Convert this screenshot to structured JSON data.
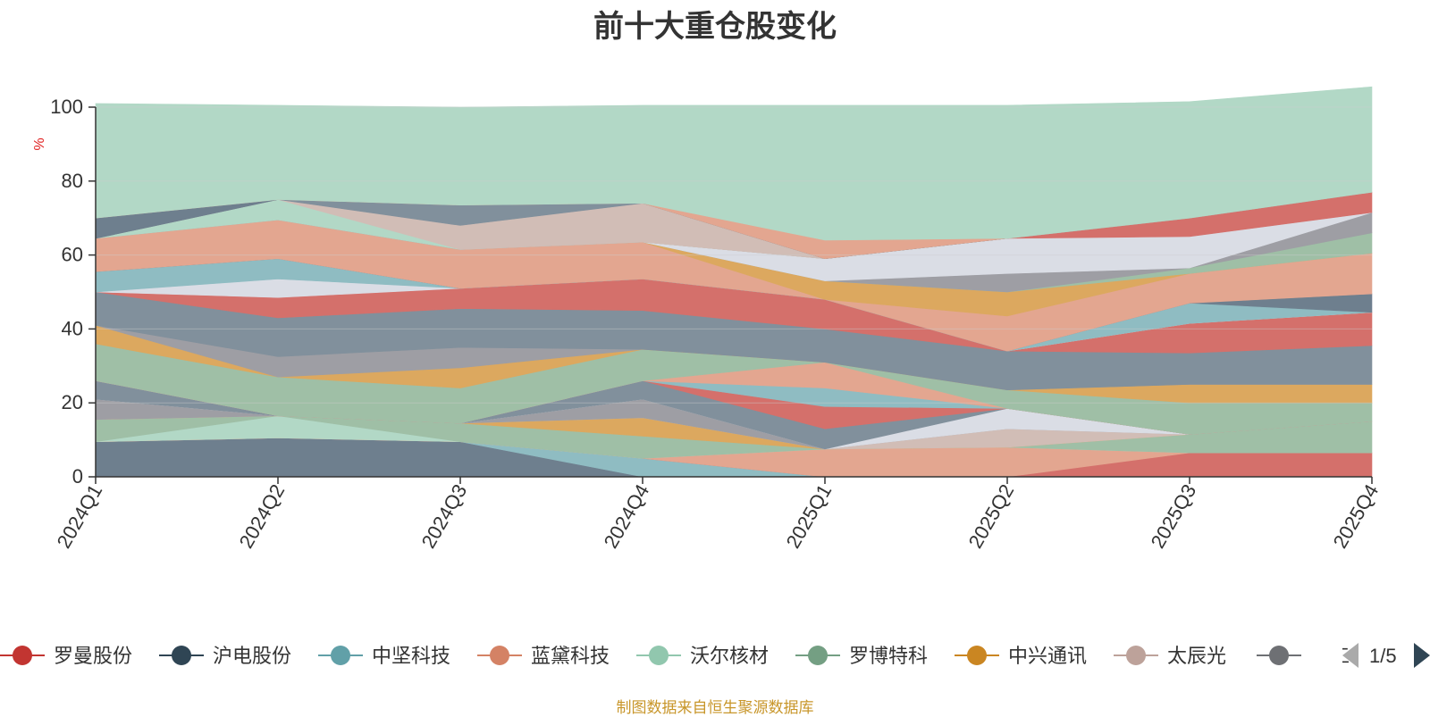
{
  "chart_data": {
    "type": "area",
    "stacked": true,
    "title": "前十大重仓股变化",
    "ylabel": "%",
    "ylim": [
      0,
      100
    ],
    "yticks": [
      0,
      20,
      40,
      60,
      80,
      100
    ],
    "grid": true,
    "legend_placement": "bottom",
    "categories": [
      "2024Q1",
      "2024Q2",
      "2024Q3",
      "2024Q4",
      "2025Q1",
      "2025Q2",
      "2025Q3",
      "2025Q4"
    ],
    "series": [
      {
        "color": "#6e7f8e",
        "values": [
          9.5,
          10.5,
          9.5,
          0,
          0,
          0,
          0,
          0
        ]
      },
      {
        "color": "#8fbcc2",
        "values": [
          0,
          0,
          0,
          5,
          0,
          0,
          0,
          0
        ]
      },
      {
        "color": "#d4706b",
        "values": [
          0,
          0,
          0,
          0,
          0,
          0,
          6.5,
          6.5
        ]
      },
      {
        "color": "#e3a690",
        "values": [
          0,
          0,
          0,
          0,
          7.5,
          8,
          0,
          0
        ]
      },
      {
        "color": "#b2d8c6",
        "values": [
          0,
          6,
          0,
          0,
          0,
          0,
          0,
          0
        ]
      },
      {
        "color": "#9fbfa6",
        "values": [
          6,
          0,
          5,
          6,
          0,
          0,
          5,
          8.5
        ]
      },
      {
        "color": "#dca85f",
        "values": [
          0,
          0,
          0,
          5,
          0,
          0,
          0,
          0
        ]
      },
      {
        "color": "#d1bdb6",
        "values": [
          0,
          0,
          0,
          0,
          0,
          5,
          0,
          0
        ]
      },
      {
        "color": "#9e9ea4",
        "values": [
          5.5,
          0,
          0,
          5,
          0,
          0,
          0,
          0
        ]
      },
      {
        "color": "#dadde5",
        "values": [
          0,
          0,
          0,
          0,
          0,
          5.5,
          0,
          0
        ]
      },
      {
        "color": "#81909c",
        "values": [
          5,
          0,
          0,
          5,
          5.5,
          0,
          0,
          0
        ]
      },
      {
        "color": "#d4706b",
        "values": [
          0,
          0,
          0,
          0,
          6,
          0,
          0,
          0
        ]
      },
      {
        "color": "#8fbcc2",
        "values": [
          0,
          0,
          0,
          0,
          5,
          0,
          0,
          0
        ]
      },
      {
        "color": "#e3a690",
        "values": [
          0,
          0,
          0,
          0,
          7,
          0,
          0,
          0
        ]
      },
      {
        "color": "#9fbfa6",
        "values": [
          10,
          10.5,
          9.5,
          8.5,
          0,
          5,
          8.5,
          5
        ]
      },
      {
        "color": "#dca85f",
        "values": [
          0,
          0,
          5.5,
          0,
          0,
          0,
          5,
          5
        ]
      },
      {
        "color": "#dca85f",
        "values": [
          5,
          0,
          0,
          0,
          0,
          0,
          0,
          0
        ]
      },
      {
        "color": "#9e9ea4",
        "values": [
          0,
          5.5,
          5.5,
          0,
          0,
          0,
          0,
          0
        ]
      },
      {
        "color": "#81909c",
        "values": [
          9,
          10.5,
          10.5,
          10.5,
          9,
          10.5,
          8.5,
          10.5
        ]
      },
      {
        "color": "#d4706b",
        "values": [
          0,
          5.5,
          5.5,
          8.5,
          8,
          0,
          8,
          9
        ]
      },
      {
        "color": "#dadde5",
        "values": [
          0,
          5,
          0,
          0,
          0,
          0,
          0,
          0
        ]
      },
      {
        "color": "#8fbcc2",
        "values": [
          5.5,
          5.5,
          0,
          0,
          0,
          0,
          5.5,
          0
        ]
      },
      {
        "color": "#6e7f8e",
        "values": [
          0,
          0,
          0,
          0,
          0,
          0,
          0,
          5
        ]
      },
      {
        "color": "#e3a690",
        "values": [
          9,
          10.5,
          10.5,
          10,
          0,
          9.5,
          8,
          11
        ]
      },
      {
        "color": "#dca85f",
        "values": [
          0,
          0,
          0,
          0,
          5,
          6.5,
          0,
          0
        ]
      },
      {
        "color": "#9fbfa6",
        "values": [
          0,
          0,
          0,
          0,
          0,
          0,
          1.5,
          5.5
        ]
      },
      {
        "color": "#9e9ea4",
        "values": [
          0,
          0,
          0,
          0,
          0,
          5,
          0,
          5.5
        ]
      },
      {
        "color": "#dadde5",
        "values": [
          0,
          0,
          0,
          0,
          6,
          9.5,
          8.5,
          0
        ]
      },
      {
        "color": "#d4706b",
        "values": [
          0,
          0,
          0,
          0,
          0,
          0,
          5,
          5.5
        ]
      },
      {
        "color": "#b2d8c6",
        "values": [
          0,
          5.5,
          0,
          0,
          0,
          0,
          0,
          0
        ]
      },
      {
        "color": "#d1bdb6",
        "values": [
          0,
          0,
          6.5,
          10.5,
          0,
          0,
          0,
          0
        ]
      },
      {
        "color": "#81909c",
        "values": [
          0,
          0,
          5.5,
          0,
          0,
          0,
          0,
          0
        ]
      },
      {
        "color": "#6e7f8e",
        "values": [
          5.5,
          0,
          0,
          0,
          0,
          0,
          0,
          0
        ]
      },
      {
        "color": "#e3a690",
        "values": [
          0,
          0,
          0,
          0,
          5,
          0,
          0,
          0
        ]
      },
      {
        "color": "#b2d8c6",
        "values": [
          31,
          25.5,
          26.5,
          26.5,
          36.5,
          36,
          31.5,
          28.5
        ]
      }
    ],
    "legend": [
      {
        "name": "罗曼股份",
        "color": "#c23531"
      },
      {
        "name": "沪电股份",
        "color": "#2f4554"
      },
      {
        "name": "中坚科技",
        "color": "#61a0a8"
      },
      {
        "name": "蓝黛科技",
        "color": "#d48265"
      },
      {
        "name": "沃尔核材",
        "color": "#91c7ae"
      },
      {
        "name": "罗博特科",
        "color": "#749f83"
      },
      {
        "name": "中兴通讯",
        "color": "#ca8622"
      },
      {
        "name": "太辰光",
        "color": "#bda29a"
      },
      {
        "name": "华工",
        "color": "#6e7074"
      }
    ],
    "legend_page": "1/5"
  },
  "footer": {
    "source": "制图数据来自恒生聚源数据库"
  },
  "colors": {
    "axis": "#333333",
    "grid": "#cccccc",
    "ylabel": "#e02020",
    "source": "#c8962a",
    "pager_active": "#2f4554",
    "pager_inactive": "#aaaaaa"
  }
}
